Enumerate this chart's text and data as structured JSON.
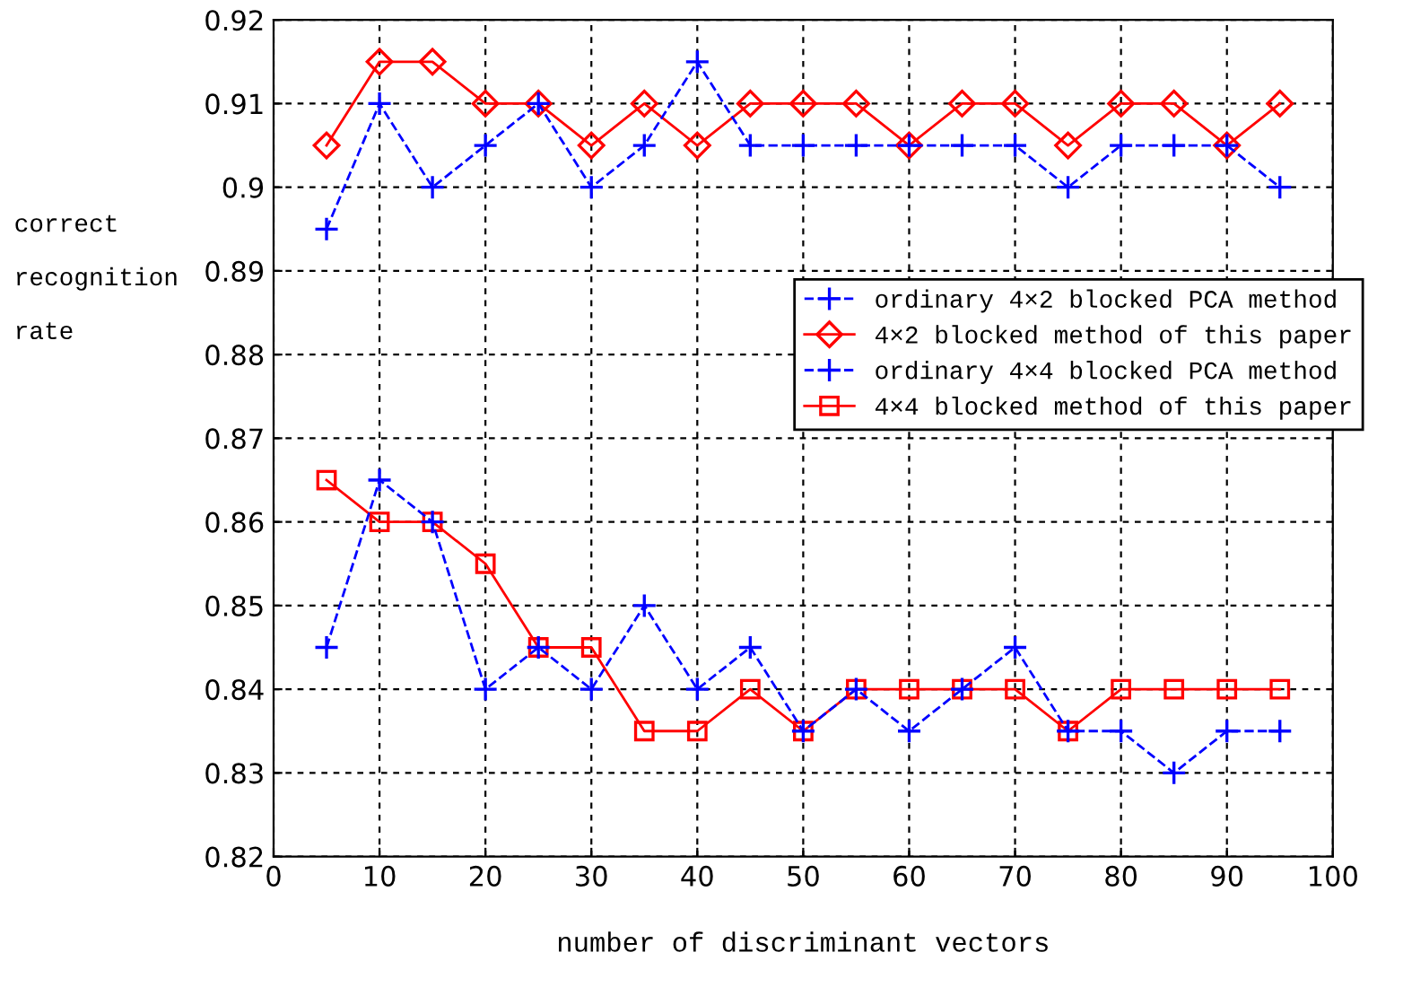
{
  "chart_data": {
    "type": "line",
    "xlabel": "number of discriminant vectors",
    "ylabel": "correct recognition rate",
    "x": [
      5,
      10,
      15,
      20,
      25,
      30,
      35,
      40,
      45,
      50,
      55,
      60,
      65,
      70,
      75,
      80,
      85,
      90,
      95
    ],
    "series": [
      {
        "name": "ordinary 4×2 blocked PCA method",
        "color": "#0000ff",
        "marker": "cross",
        "line_style": "dashed",
        "values": [
          0.895,
          0.91,
          0.9,
          0.905,
          0.91,
          0.9,
          0.905,
          0.915,
          0.905,
          0.905,
          0.905,
          0.905,
          0.905,
          0.905,
          0.9,
          0.905,
          0.905,
          0.905,
          0.9
        ]
      },
      {
        "name": "4×2 blocked method of this paper",
        "color": "#ff0000",
        "marker": "diamond",
        "line_style": "solid",
        "values": [
          0.905,
          0.915,
          0.915,
          0.91,
          0.91,
          0.905,
          0.91,
          0.905,
          0.91,
          0.91,
          0.91,
          0.905,
          0.91,
          0.91,
          0.905,
          0.91,
          0.91,
          0.905,
          0.91
        ]
      },
      {
        "name": "ordinary 4×4 blocked PCA method",
        "color": "#0000ff",
        "marker": "cross",
        "line_style": "dashed",
        "values": [
          0.845,
          0.865,
          0.86,
          0.84,
          0.845,
          0.84,
          0.85,
          0.84,
          0.845,
          0.835,
          0.84,
          0.835,
          0.84,
          0.845,
          0.835,
          0.835,
          0.83,
          0.835,
          0.835
        ]
      },
      {
        "name": "4×4 blocked method of this paper",
        "color": "#ff0000",
        "marker": "square",
        "line_style": "solid",
        "values": [
          0.865,
          0.86,
          0.86,
          0.855,
          0.845,
          0.845,
          0.835,
          0.835,
          0.84,
          0.835,
          0.84,
          0.84,
          0.84,
          0.84,
          0.835,
          0.84,
          0.84,
          0.84,
          0.84
        ]
      }
    ],
    "xlim": [
      0,
      100
    ],
    "xticks": [
      0,
      10,
      20,
      30,
      40,
      50,
      60,
      70,
      80,
      90,
      100
    ],
    "ylim": [
      0.82,
      0.92
    ],
    "yticks": [
      0.82,
      0.83,
      0.84,
      0.85,
      0.86,
      0.87,
      0.88,
      0.89,
      0.9,
      0.91,
      0.92
    ],
    "grid": true,
    "legend": "right"
  }
}
